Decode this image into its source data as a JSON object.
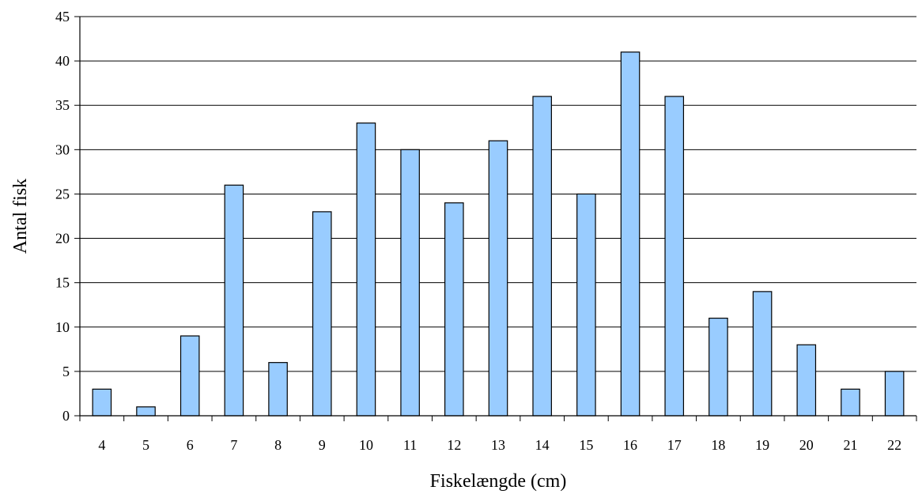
{
  "chart_data": {
    "type": "bar",
    "categories": [
      "4",
      "5",
      "6",
      "7",
      "8",
      "9",
      "10",
      "11",
      "12",
      "13",
      "14",
      "15",
      "16",
      "17",
      "18",
      "19",
      "20",
      "21",
      "22"
    ],
    "values": [
      3,
      1,
      9,
      26,
      6,
      23,
      33,
      30,
      24,
      31,
      36,
      25,
      41,
      36,
      11,
      14,
      8,
      3,
      5
    ],
    "title": "",
    "xlabel": "Fiskelængde (cm)",
    "ylabel": "Antal fisk",
    "ylim": [
      0,
      45
    ],
    "yticks": [
      0,
      5,
      10,
      15,
      20,
      25,
      30,
      35,
      40,
      45
    ],
    "grid": "horizontal",
    "colors": {
      "bar_fill": "#99ccff",
      "bar_stroke": "#000000",
      "grid": "#000000"
    }
  }
}
